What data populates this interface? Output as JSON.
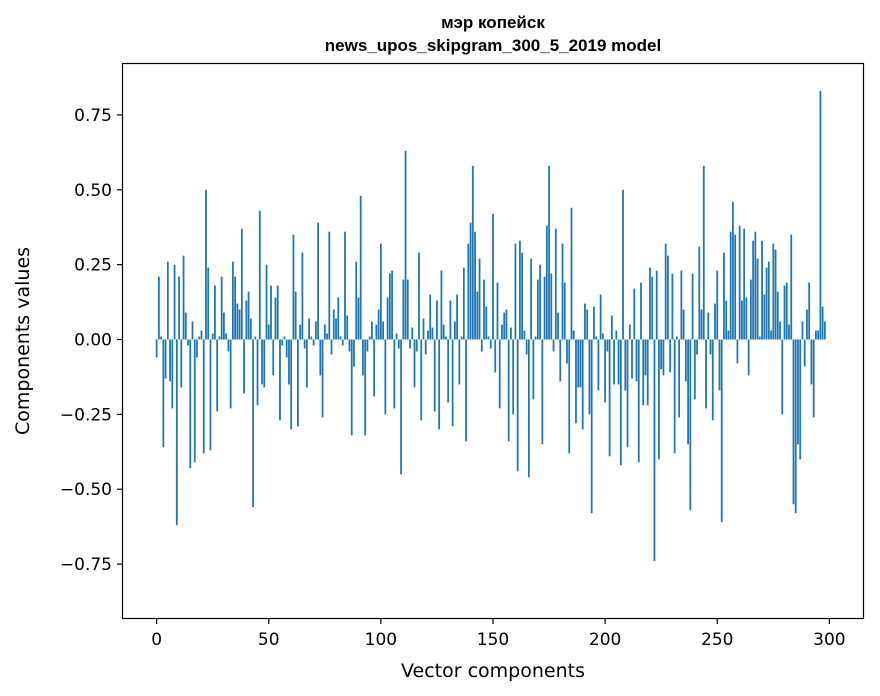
{
  "chart_data": {
    "type": "bar",
    "title_line1": "мэр копейск",
    "title_line2": "news_upos_skipgram_300_5_2019 model",
    "xlabel": "Vector components",
    "ylabel": "Components values",
    "xlim": [
      -15,
      315
    ],
    "ylim": [
      -0.93,
      0.92
    ],
    "x_ticks": [
      0,
      50,
      100,
      150,
      200,
      250,
      300
    ],
    "x_tick_labels": [
      "0",
      "50",
      "100",
      "150",
      "200",
      "250",
      "300"
    ],
    "y_ticks": [
      0.75,
      0.5,
      0.25,
      0.0,
      -0.25,
      -0.5,
      -0.75
    ],
    "y_tick_labels": [
      "0.75",
      "0.50",
      "0.25",
      "0.00",
      "−0.25",
      "−0.50",
      "−0.75"
    ],
    "bar_color": "#1f77b4",
    "grid": false,
    "values": [
      -0.06,
      0.21,
      0.01,
      -0.36,
      -0.13,
      0.26,
      -0.14,
      -0.23,
      0.25,
      -0.62,
      0.21,
      -0.16,
      0.28,
      0.09,
      -0.02,
      -0.43,
      0.06,
      -0.41,
      -0.06,
      0.01,
      0.03,
      -0.38,
      0.5,
      0.24,
      -0.37,
      0.02,
      0.18,
      -0.24,
      0.01,
      0.21,
      0.09,
      0.02,
      -0.04,
      -0.23,
      0.26,
      0.21,
      0.12,
      0.1,
      0.37,
      -0.18,
      0.13,
      0.16,
      0.07,
      -0.56,
      0.01,
      -0.22,
      0.43,
      -0.15,
      -0.16,
      0.25,
      0.05,
      0.18,
      -0.12,
      0.14,
      0.18,
      -0.27,
      -0.02,
      0.01,
      -0.06,
      -0.15,
      -0.3,
      0.35,
      0.16,
      -0.29,
      0.05,
      0.29,
      -0.03,
      -0.16,
      0.07,
      0.01,
      -0.02,
      0.06,
      0.39,
      -0.12,
      -0.26,
      0.05,
      0.02,
      0.36,
      -0.05,
      0.1,
      0.07,
      0.14,
      0.01,
      -0.02,
      0.36,
      0.08,
      -0.04,
      -0.32,
      -0.09,
      0.26,
      0.14,
      0.48,
      -0.12,
      -0.32,
      -0.04,
      0.01,
      0.06,
      -0.19,
      0.05,
      0.1,
      0.32,
      0.06,
      -0.25,
      0.14,
      0.22,
      0.23,
      -0.23,
      0.02,
      -0.03,
      -0.45,
      0.2,
      0.63,
      0.2,
      -0.03,
      0.04,
      -0.16,
      -0.04,
      0.29,
      -0.27,
      0.07,
      -0.05,
      0.03,
      0.15,
      0.04,
      -0.24,
      0.13,
      -0.3,
      0.23,
      0.05,
      0.01,
      -0.21,
      0.13,
      -0.29,
      0.06,
      0.15,
      -0.15,
      0.01,
      0.24,
      -0.34,
      0.32,
      0.39,
      0.58,
      0.36,
      0.16,
      0.27,
      -0.04,
      0.2,
      0.11,
      0.01,
      -0.03,
      0.42,
      -0.11,
      0.19,
      -0.23,
      0.05,
      0.09,
      0.1,
      -0.34,
      0.04,
      -0.25,
      0.32,
      -0.44,
      0.33,
      0.29,
      0.03,
      -0.05,
      -0.46,
      0.27,
      -0.2,
      0.01,
      0.2,
      0.25,
      -0.35,
      0.21,
      0.38,
      0.58,
      0.22,
      -0.04,
      0.37,
      0.09,
      -0.14,
      0.32,
      0.19,
      -0.08,
      -0.38,
      0.44,
      0.03,
      -0.28,
      -0.16,
      -0.16,
      -0.3,
      0.12,
      0.1,
      -0.25,
      -0.58,
      0.11,
      0.01,
      -0.17,
      0.15,
      0.02,
      -0.21,
      -0.04,
      -0.39,
      0.08,
      -0.15,
      0.03,
      -0.15,
      -0.42,
      0.5,
      -0.17,
      -0.36,
      0.05,
      -0.13,
      0.17,
      -0.14,
      -0.41,
      0.19,
      -0.22,
      -0.12,
      -0.22,
      0.24,
      0.21,
      -0.74,
      0.23,
      -0.4,
      -0.1,
      -0.12,
      0.32,
      0.28,
      -0.11,
      0.22,
      -0.38,
      0.01,
      -0.26,
      0.23,
      0.1,
      -0.14,
      -0.35,
      -0.57,
      0.22,
      -0.2,
      -0.05,
      0.31,
      0.1,
      0.58,
      -0.23,
      0.09,
      -0.05,
      -0.27,
      0.12,
      0.23,
      -0.17,
      -0.61,
      0.29,
      0.13,
      0.03,
      0.36,
      0.46,
      0.35,
      -0.08,
      0.38,
      0.13,
      0.37,
      0.14,
      -0.12,
      0.2,
      0.33,
      0.36,
      0.27,
      0.01,
      0.33,
      0.15,
      0.24,
      0.26,
      0.03,
      0.32,
      0.3,
      0.16,
      0.06,
      -0.25,
      0.18,
      0.19,
      0.05,
      0.35,
      -0.55,
      -0.58,
      -0.35,
      -0.4,
      0.06,
      -0.09,
      0.1,
      0.19,
      -0.15,
      -0.26,
      0.03,
      0.03,
      0.83,
      0.11,
      0.06
    ]
  }
}
